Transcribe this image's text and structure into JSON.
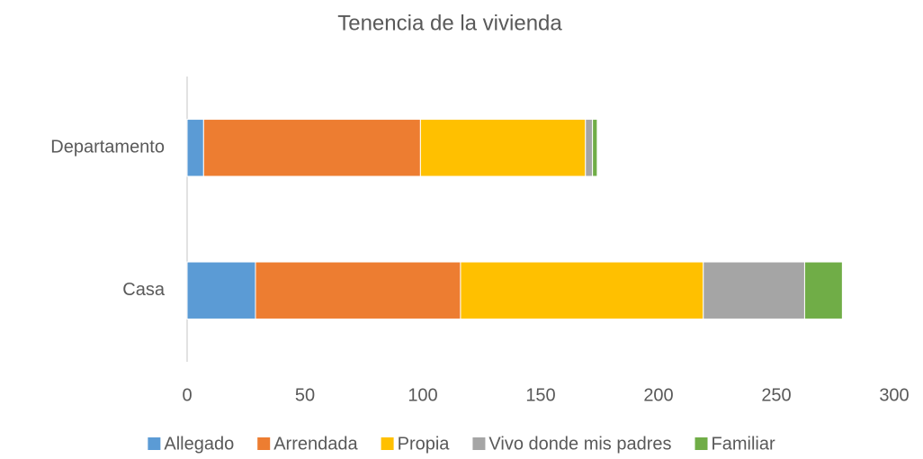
{
  "chart_data": {
    "type": "stacked-bar-horizontal",
    "title": "Tenencia de la vivienda",
    "categories": [
      "Casa",
      "Departamento"
    ],
    "series": [
      {
        "name": "Allegado",
        "color": "#5b9bd5",
        "values": [
          29,
          7
        ]
      },
      {
        "name": "Arrendada",
        "color": "#ed7d31",
        "values": [
          87,
          92
        ]
      },
      {
        "name": "Propia",
        "color": "#ffc000",
        "values": [
          103,
          70
        ]
      },
      {
        "name": "Vivo donde mis padres",
        "color": "#a5a5a5",
        "values": [
          43,
          3
        ]
      },
      {
        "name": "Familiar",
        "color": "#70ad47",
        "values": [
          16,
          2
        ]
      }
    ],
    "xlim": [
      0,
      300
    ],
    "xticks": [
      0,
      50,
      100,
      150,
      200,
      250,
      300
    ],
    "grid": false,
    "legend": "bottom"
  }
}
